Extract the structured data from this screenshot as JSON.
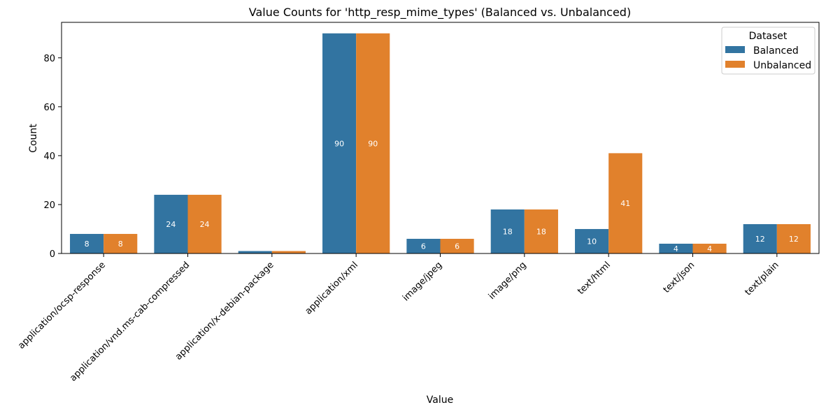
{
  "chart_data": {
    "type": "bar",
    "title": "Value Counts for 'http_resp_mime_types' (Balanced vs. Unbalanced)",
    "xlabel": "Value",
    "ylabel": "Count",
    "ylim": [
      0,
      94.5
    ],
    "yticks": [
      0,
      20,
      40,
      60,
      80
    ],
    "categories": [
      "application/ocsp-response",
      "application/vnd.ms-cab-compressed",
      "application/x-debian-package",
      "application/xml",
      "image/jpeg",
      "image/png",
      "text/html",
      "text/json",
      "text/plain"
    ],
    "series": [
      {
        "name": "Balanced",
        "color": "#3274a1",
        "values": [
          8,
          24,
          1,
          90,
          6,
          18,
          10,
          4,
          12
        ]
      },
      {
        "name": "Unbalanced",
        "color": "#e1812c",
        "values": [
          8,
          24,
          1,
          90,
          6,
          18,
          41,
          4,
          12
        ]
      }
    ],
    "legend_title": "Dataset",
    "legend_position": "top-right",
    "grid": false
  }
}
